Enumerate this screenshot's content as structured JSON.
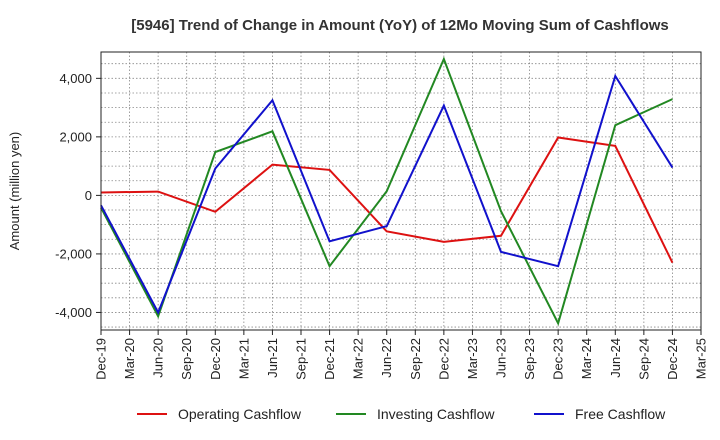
{
  "chart_data": {
    "type": "line",
    "title": "[5946]  Trend of Change in Amount (YoY) of 12Mo Moving Sum of Cashflows",
    "xlabel": "",
    "ylabel": "Amount (million yen)",
    "ylim": [
      -4600,
      4900
    ],
    "yticks": [
      -4000,
      -2000,
      0,
      2000,
      4000
    ],
    "ytick_labels": [
      "-4,000",
      "-2,000",
      "0",
      "2,000",
      "4,000"
    ],
    "categories": [
      "Dec-19",
      "Mar-20",
      "Jun-20",
      "Sep-20",
      "Dec-20",
      "Mar-21",
      "Jun-21",
      "Sep-21",
      "Dec-21",
      "Mar-22",
      "Jun-22",
      "Sep-22",
      "Dec-22",
      "Mar-23",
      "Jun-23",
      "Sep-23",
      "Dec-23",
      "Mar-24",
      "Jun-24",
      "Sep-24",
      "Dec-24",
      "Mar-25"
    ],
    "grid": true,
    "legend_position": "bottom",
    "series": [
      {
        "name": "Operating Cashflow",
        "color": "#dd1111",
        "points": [
          [
            0,
            100
          ],
          [
            2,
            130
          ],
          [
            4,
            -560
          ],
          [
            6,
            1050
          ],
          [
            8,
            870
          ],
          [
            10,
            -1230
          ],
          [
            12,
            -1590
          ],
          [
            14,
            -1380
          ],
          [
            16,
            1980
          ],
          [
            18,
            1690
          ],
          [
            20,
            -2300
          ]
        ]
      },
      {
        "name": "Investing Cashflow",
        "color": "#228822",
        "points": [
          [
            0,
            -420
          ],
          [
            2,
            -4130
          ],
          [
            4,
            1480
          ],
          [
            6,
            2190
          ],
          [
            8,
            -2420
          ],
          [
            10,
            140
          ],
          [
            12,
            4660
          ],
          [
            14,
            -540
          ],
          [
            16,
            -4370
          ],
          [
            18,
            2400
          ],
          [
            20,
            3290
          ]
        ]
      },
      {
        "name": "Free Cashflow",
        "color": "#1111cc",
        "points": [
          [
            0,
            -340
          ],
          [
            2,
            -4000
          ],
          [
            4,
            920
          ],
          [
            6,
            3250
          ],
          [
            8,
            -1570
          ],
          [
            10,
            -1050
          ],
          [
            12,
            3070
          ],
          [
            14,
            -1930
          ],
          [
            16,
            -2420
          ],
          [
            18,
            4080
          ],
          [
            20,
            950
          ]
        ]
      }
    ]
  }
}
